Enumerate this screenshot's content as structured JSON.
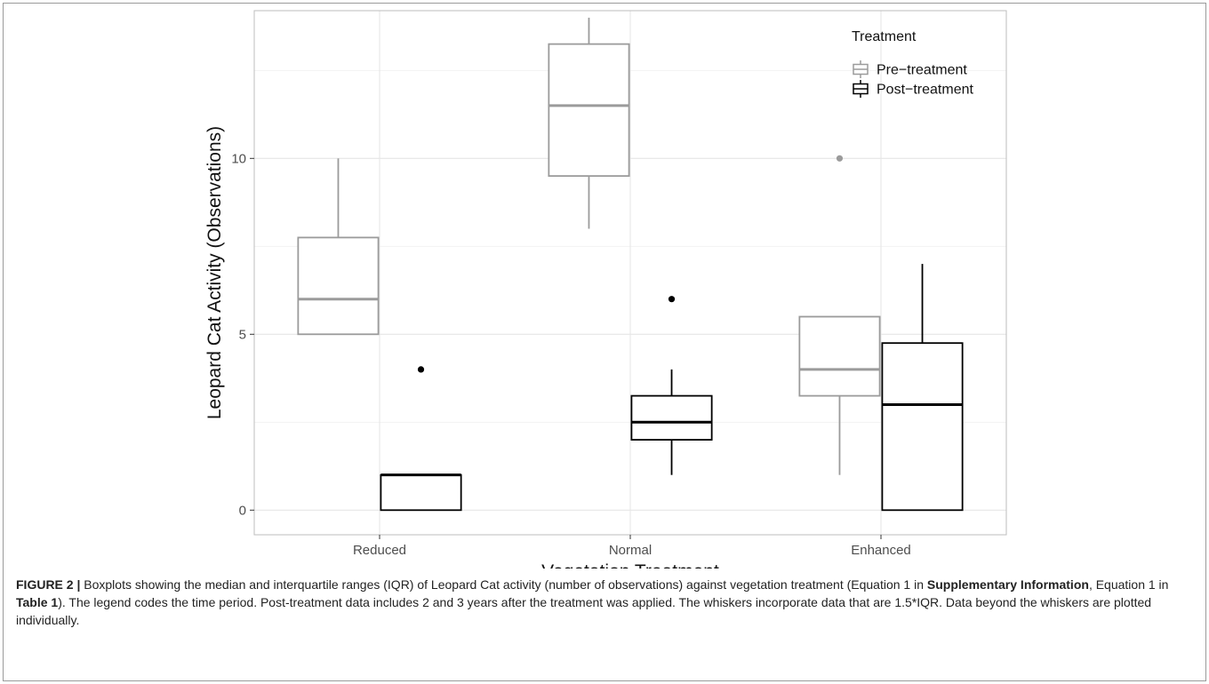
{
  "chart_data": {
    "type": "boxplot",
    "xlabel": "Vegetation Treatment",
    "ylabel": "Leopard Cat Activity (Observations)",
    "categories": [
      "Reduced",
      "Normal",
      "Enhanced"
    ],
    "ylim": [
      -0.7,
      14.2
    ],
    "y_ticks": [
      0,
      5,
      10
    ],
    "grid": true,
    "legend": {
      "title": "Treatment",
      "position": "top-right",
      "entries": [
        "Pre−treatment",
        "Post−treatment"
      ]
    },
    "series": [
      {
        "name": "Pre−treatment",
        "color": "#9b9b9b",
        "boxes": [
          {
            "category": "Reduced",
            "whisker_low": 5,
            "q1": 5,
            "median": 6,
            "q3": 7.75,
            "whisker_high": 10,
            "outliers": []
          },
          {
            "category": "Normal",
            "whisker_low": 8,
            "q1": 9.5,
            "median": 11.5,
            "q3": 13.25,
            "whisker_high": 14,
            "outliers": []
          },
          {
            "category": "Enhanced",
            "whisker_low": 1,
            "q1": 3.25,
            "median": 4,
            "q3": 5.5,
            "whisker_high": 5.5,
            "outliers": [
              10
            ]
          }
        ]
      },
      {
        "name": "Post−treatment",
        "color": "#000000",
        "boxes": [
          {
            "category": "Reduced",
            "whisker_low": 0,
            "q1": 0,
            "median": 1,
            "q3": 1,
            "whisker_high": 1,
            "outliers": [
              4
            ]
          },
          {
            "category": "Normal",
            "whisker_low": 1,
            "q1": 2,
            "median": 2.5,
            "q3": 3.25,
            "whisker_high": 4,
            "outliers": [
              6
            ]
          },
          {
            "category": "Enhanced",
            "whisker_low": 0,
            "q1": 0,
            "median": 3,
            "q3": 4.75,
            "whisker_high": 7,
            "outliers": []
          }
        ]
      }
    ]
  },
  "caption": {
    "figure_label": "FIGURE 2 |",
    "part1": " Boxplots showing the median and interquartile ranges (IQR) of Leopard Cat activity (number of observations) against vegetation treatment (Equation 1 in ",
    "bold1": "Supplementary Information",
    "part2": ", Equation 1 in ",
    "bold2": "Table 1",
    "part3": "). The legend codes the time period. Post-treatment data includes 2 and 3 years after the treatment was applied. The whiskers incorporate data that are 1.5*IQR. Data beyond the whiskers are plotted individually."
  }
}
